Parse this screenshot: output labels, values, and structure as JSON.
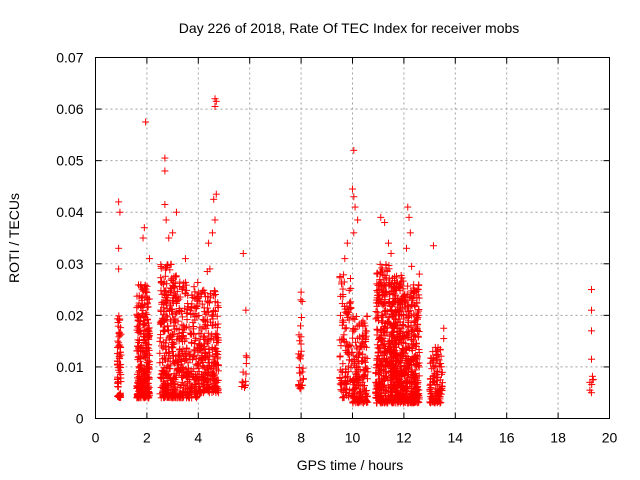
{
  "chart_data": {
    "type": "scatter",
    "title": "Day 226 of 2018, Rate Of TEC Index for receiver mobs",
    "xlabel": "GPS time / hours",
    "ylabel": "ROTI / TECUs",
    "xlim": [
      0,
      20
    ],
    "ylim": [
      0,
      0.07
    ],
    "grid": true,
    "marker": "+",
    "color": "#ff0000",
    "xticks": [
      0,
      2,
      4,
      6,
      8,
      10,
      12,
      14,
      16,
      18,
      20
    ],
    "xtick_labels": [
      "0",
      "2",
      "4",
      "6",
      "8",
      "10",
      "12",
      "14",
      "16",
      "18",
      "20"
    ],
    "yticks": [
      0,
      0.01,
      0.02,
      0.03,
      0.04,
      0.05,
      0.06,
      0.07
    ],
    "ytick_labels": [
      "0",
      "0.01",
      "0.02",
      "0.03",
      "0.04",
      "0.05",
      "0.06",
      "0.07"
    ],
    "clusters": [
      {
        "x": [
          0.85,
          1.0
        ],
        "y": [
          0.004,
          0.02
        ],
        "n": 70
      },
      {
        "x": [
          1.6,
          2.1
        ],
        "y": [
          0.004,
          0.026
        ],
        "n": 300
      },
      {
        "x": [
          2.5,
          3.3
        ],
        "y": [
          0.004,
          0.03
        ],
        "n": 320
      },
      {
        "x": [
          3.3,
          4.0
        ],
        "y": [
          0.004,
          0.027
        ],
        "n": 200
      },
      {
        "x": [
          4.0,
          4.8
        ],
        "y": [
          0.005,
          0.025
        ],
        "n": 260
      },
      {
        "x": [
          5.65,
          5.9
        ],
        "y": [
          0.006,
          0.013
        ],
        "n": 12
      },
      {
        "x": [
          7.9,
          8.1
        ],
        "y": [
          0.005,
          0.023
        ],
        "n": 30
      },
      {
        "x": [
          9.5,
          10.0
        ],
        "y": [
          0.004,
          0.028
        ],
        "n": 110
      },
      {
        "x": [
          10.0,
          10.6
        ],
        "y": [
          0.003,
          0.02
        ],
        "n": 180
      },
      {
        "x": [
          10.9,
          11.5
        ],
        "y": [
          0.003,
          0.03
        ],
        "n": 320
      },
      {
        "x": [
          11.5,
          12.0
        ],
        "y": [
          0.003,
          0.028
        ],
        "n": 360
      },
      {
        "x": [
          12.0,
          12.6
        ],
        "y": [
          0.003,
          0.026
        ],
        "n": 300
      },
      {
        "x": [
          13.0,
          13.5
        ],
        "y": [
          0.003,
          0.014
        ],
        "n": 110
      },
      {
        "x": [
          19.2,
          19.4
        ],
        "y": [
          0.005,
          0.009
        ],
        "n": 6
      }
    ],
    "points": [
      [
        0.9,
        0.042
      ],
      [
        0.95,
        0.04
      ],
      [
        0.9,
        0.033
      ],
      [
        0.9,
        0.029
      ],
      [
        1.95,
        0.0575
      ],
      [
        1.85,
        0.035
      ],
      [
        1.9,
        0.037
      ],
      [
        2.1,
        0.031
      ],
      [
        2.7,
        0.0505
      ],
      [
        2.7,
        0.048
      ],
      [
        2.75,
        0.0385
      ],
      [
        2.7,
        0.0415
      ],
      [
        2.85,
        0.035
      ],
      [
        3.15,
        0.04
      ],
      [
        3.0,
        0.036
      ],
      [
        3.5,
        0.031
      ],
      [
        4.65,
        0.062
      ],
      [
        4.7,
        0.0615
      ],
      [
        4.65,
        0.0605
      ],
      [
        4.7,
        0.0435
      ],
      [
        4.6,
        0.0425
      ],
      [
        4.65,
        0.0385
      ],
      [
        4.55,
        0.036
      ],
      [
        4.4,
        0.034
      ],
      [
        4.35,
        0.0285
      ],
      [
        4.45,
        0.029
      ],
      [
        5.75,
        0.032
      ],
      [
        5.85,
        0.021
      ],
      [
        8.0,
        0.0245
      ],
      [
        9.8,
        0.034
      ],
      [
        9.7,
        0.031
      ],
      [
        10.05,
        0.052
      ],
      [
        10.0,
        0.0445
      ],
      [
        10.05,
        0.043
      ],
      [
        10.1,
        0.041
      ],
      [
        10.2,
        0.0385
      ],
      [
        10.05,
        0.036
      ],
      [
        11.1,
        0.039
      ],
      [
        11.25,
        0.038
      ],
      [
        11.4,
        0.034
      ],
      [
        11.5,
        0.032
      ],
      [
        12.15,
        0.041
      ],
      [
        12.2,
        0.039
      ],
      [
        12.25,
        0.036
      ],
      [
        12.1,
        0.033
      ],
      [
        12.3,
        0.0295
      ],
      [
        12.6,
        0.028
      ],
      [
        13.15,
        0.0335
      ],
      [
        13.55,
        0.0175
      ],
      [
        13.55,
        0.0155
      ],
      [
        19.3,
        0.025
      ],
      [
        19.3,
        0.021
      ],
      [
        19.3,
        0.017
      ],
      [
        19.3,
        0.0115
      ],
      [
        19.35,
        0.0075
      ]
    ]
  }
}
